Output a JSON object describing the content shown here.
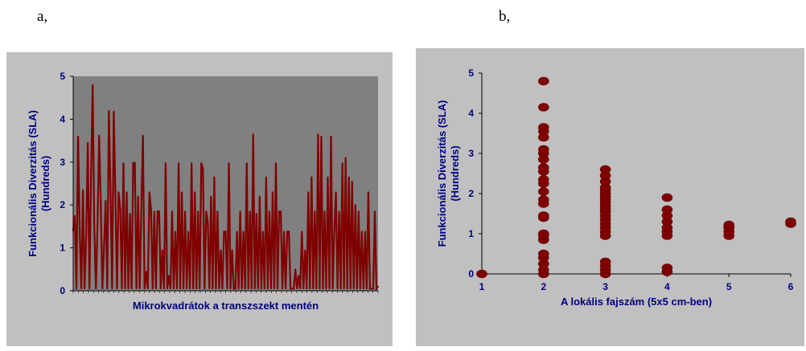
{
  "panels": {
    "a_label": "a,",
    "b_label": "b,"
  },
  "colors": {
    "frame_bg": "#c0c0c0",
    "plot_bg_a": "#808080",
    "plot_bg_b": "#c0c0c0",
    "series": "#800000",
    "text": "#000080"
  },
  "chart_data": [
    {
      "type": "line",
      "title": "",
      "xlabel": "Mikrokvadrátok a transzszekt mentén",
      "ylabel_line1": "Funkcionális Diverzitás (SLA)",
      "ylabel_line2": "(Hundreds)",
      "ylim": [
        0,
        5
      ],
      "yticks": [
        "0",
        "1",
        "2",
        "3",
        "4",
        "5"
      ],
      "grid": false,
      "series": [
        {
          "values": [
            1.4,
            1.75,
            0.05,
            3.6,
            1.4,
            0.05,
            2.35,
            0.05,
            1.3,
            3.45,
            0.05,
            2.65,
            4.8,
            1.5,
            0.05,
            1.5,
            3.62,
            2.05,
            0.05,
            1.0,
            2.1,
            0.05,
            4.2,
            2.3,
            0.05,
            4.18,
            2.3,
            0.05,
            2.3,
            1.9,
            0.05,
            2.98,
            0.05,
            2.3,
            0.05,
            1.8,
            0.05,
            2.98,
            2.98,
            0.05,
            2.2,
            0.05,
            1.9,
            3.62,
            0.05,
            0.45,
            0.05,
            2.3,
            1.9,
            0.05,
            1.85,
            0.05,
            1.85,
            1.85,
            0.05,
            0.95,
            0.05,
            2.98,
            0.05,
            0.35,
            0.05,
            1.85,
            0.05,
            1.38,
            0.05,
            2.98,
            0.05,
            2.3,
            0.05,
            1.85,
            0.05,
            1.38,
            0.05,
            2.98,
            0.05,
            2.3,
            0.05,
            1.85,
            0.05,
            2.98,
            2.85,
            0.05,
            1.85,
            1.6,
            0.05,
            2.2,
            0.05,
            2.65,
            0.05,
            1.85,
            0.05,
            0.95,
            0.05,
            1.38,
            1.38,
            0.05,
            2.98,
            0.05,
            0.95,
            0.05,
            0.05,
            1.38,
            0.05,
            1.85,
            0.05,
            1.38,
            0.05,
            2.98,
            0.05,
            1.85,
            0.05,
            3.65,
            0.05,
            1.8,
            0.05,
            2.2,
            0.05,
            1.38,
            0.05,
            2.65,
            0.05,
            1.85,
            0.05,
            2.3,
            0.05,
            2.98,
            0.05,
            1.85,
            1.85,
            0.05,
            1.38,
            0.05,
            1.38,
            1.38,
            0.05,
            0.05,
            0.05,
            0.5,
            0.05,
            0.35,
            0.05,
            1.38,
            0.05,
            0.95,
            0.05,
            2.3,
            0.05,
            2.65,
            0.05,
            1.85,
            0.05,
            3.65,
            0.05,
            3.6,
            0.05,
            1.85,
            0.05,
            2.65,
            0.05,
            3.6,
            0.05,
            1.38,
            2.3,
            0.05,
            1.85,
            0.05,
            2.98,
            0.05,
            3.1,
            0.05,
            2.65,
            0.05,
            2.55,
            0.05,
            2.0,
            0.05,
            1.85,
            0.05,
            1.38,
            0.05,
            1.38,
            0.05,
            2.3,
            0.05,
            0.05,
            0.05,
            1.85,
            0.05,
            0.1
          ]
        }
      ]
    },
    {
      "type": "scatter",
      "title": "",
      "xlabel": "A lokális fajszám (5x5 cm-ben)",
      "ylabel_line1": "Funkcionális Diverzitás (SLA)",
      "ylabel_line2": "(Hundreds)",
      "xlim": [
        1,
        6
      ],
      "ylim": [
        0,
        5
      ],
      "xticks": [
        "1",
        "2",
        "3",
        "4",
        "5",
        "6"
      ],
      "yticks": [
        "0",
        "1",
        "2",
        "3",
        "4",
        "5"
      ],
      "grid": false,
      "series": [
        {
          "points": [
            [
              1,
              0.0
            ],
            [
              2,
              0.0
            ],
            [
              2,
              0.1
            ],
            [
              2,
              0.25
            ],
            [
              2,
              0.4
            ],
            [
              2,
              0.5
            ],
            [
              2,
              0.85
            ],
            [
              2,
              0.95
            ],
            [
              2,
              1.0
            ],
            [
              2,
              1.4
            ],
            [
              2,
              1.45
            ],
            [
              2,
              1.75
            ],
            [
              2,
              1.85
            ],
            [
              2,
              2.05
            ],
            [
              2,
              2.25
            ],
            [
              2,
              2.35
            ],
            [
              2,
              2.55
            ],
            [
              2,
              2.65
            ],
            [
              2,
              2.85
            ],
            [
              2,
              3.0
            ],
            [
              2,
              3.1
            ],
            [
              2,
              3.4
            ],
            [
              2,
              3.55
            ],
            [
              2,
              3.65
            ],
            [
              2,
              4.15
            ],
            [
              2,
              4.8
            ],
            [
              3,
              0.0
            ],
            [
              3,
              0.1
            ],
            [
              3,
              0.2
            ],
            [
              3,
              0.3
            ],
            [
              3,
              0.95
            ],
            [
              3,
              1.05
            ],
            [
              3,
              1.15
            ],
            [
              3,
              1.25
            ],
            [
              3,
              1.35
            ],
            [
              3,
              1.45
            ],
            [
              3,
              1.55
            ],
            [
              3,
              1.62
            ],
            [
              3,
              1.7
            ],
            [
              3,
              1.78
            ],
            [
              3,
              1.85
            ],
            [
              3,
              1.92
            ],
            [
              3,
              2.0
            ],
            [
              3,
              2.08
            ],
            [
              3,
              2.15
            ],
            [
              3,
              2.3
            ],
            [
              3,
              2.45
            ],
            [
              3,
              2.6
            ],
            [
              4,
              0.05
            ],
            [
              4,
              0.15
            ],
            [
              4,
              0.95
            ],
            [
              4,
              1.05
            ],
            [
              4,
              1.15
            ],
            [
              4,
              1.3
            ],
            [
              4,
              1.45
            ],
            [
              4,
              1.6
            ],
            [
              4,
              1.9
            ],
            [
              5,
              0.95
            ],
            [
              5,
              1.05
            ],
            [
              5,
              1.15
            ],
            [
              5,
              1.22
            ],
            [
              6,
              1.25
            ],
            [
              6,
              1.3
            ]
          ]
        }
      ]
    }
  ]
}
